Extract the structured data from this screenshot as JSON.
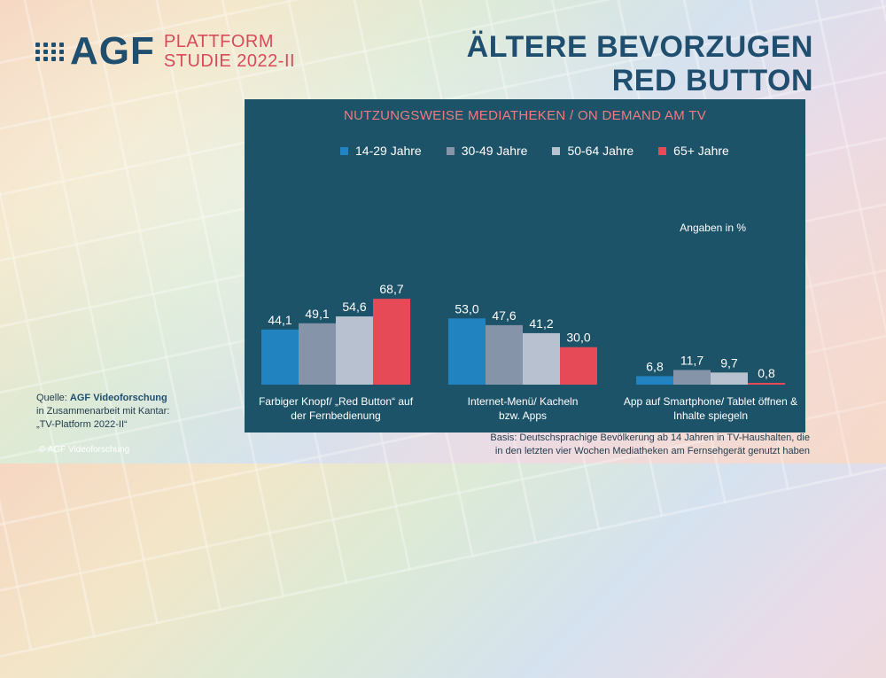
{
  "logo": {
    "name": "AGF",
    "sub_line1": "PLATTFORM",
    "sub_line2": "STUDIE 2022-II"
  },
  "headline": {
    "line1": "ÄLTERE BEVORZUGEN",
    "line2": "RED BUTTON"
  },
  "note": "Angaben  in %",
  "source": {
    "label": "Quelle:",
    "org": "AGF Videoforschung",
    "line2": "in Zusammenarbeit mit Kantar:",
    "line3": "„TV-Platform 2022-II“"
  },
  "copyright": "© AGF Videoforschung",
  "basis": {
    "line1": "Basis: Deutschsprachige Bevölkerung ab 14 Jahren in TV-Haushalten, die",
    "line2": "in den letzten vier Wochen Mediatheken am Fernsehgerät genutzt haben"
  },
  "chart_data": {
    "type": "bar",
    "title": "NUTZUNGSWEISE MEDIATHEKEN / ON DEMAND AM TV",
    "categories": [
      [
        "Farbiger Knopf/ „Red Button“ auf",
        "der Fernbedienung"
      ],
      [
        "Internet-Menü/ Kacheln",
        "bzw. Apps"
      ],
      [
        "App auf Smartphone/ Tablet öffnen &",
        "Inhalte spiegeln"
      ]
    ],
    "series": [
      {
        "name": "14-29 Jahre",
        "color": "#2183bf",
        "values": [
          44.1,
          53.0,
          6.8
        ]
      },
      {
        "name": "30-49 Jahre",
        "color": "#8594a8",
        "values": [
          49.1,
          47.6,
          11.7
        ]
      },
      {
        "name": "50-64 Jahre",
        "color": "#b7c1cf",
        "values": [
          54.6,
          41.2,
          9.7
        ]
      },
      {
        "name": "65+ Jahre",
        "color": "#e64a57",
        "values": [
          68.7,
          30.0,
          0.8
        ]
      }
    ],
    "ylim": [
      0,
      100
    ],
    "value_labels": true,
    "decimal_separator": ","
  }
}
